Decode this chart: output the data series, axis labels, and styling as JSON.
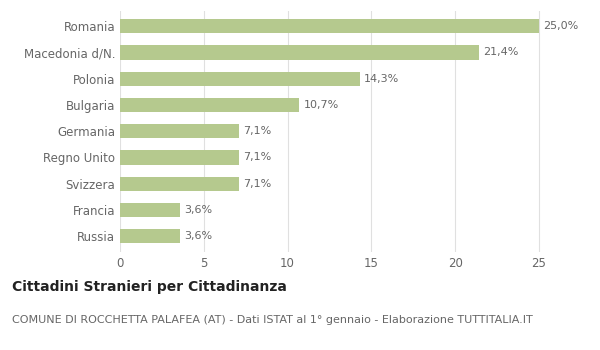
{
  "categories": [
    "Russia",
    "Francia",
    "Svizzera",
    "Regno Unito",
    "Germania",
    "Bulgaria",
    "Polonia",
    "Macedonia d/N.",
    "Romania"
  ],
  "values": [
    3.6,
    3.6,
    7.1,
    7.1,
    7.1,
    10.7,
    14.3,
    21.4,
    25.0
  ],
  "labels": [
    "3,6%",
    "3,6%",
    "7,1%",
    "7,1%",
    "7,1%",
    "10,7%",
    "14,3%",
    "21,4%",
    "25,0%"
  ],
  "bar_color": "#b5c98e",
  "background_color": "#ffffff",
  "xlim": [
    0,
    26.5
  ],
  "xticks": [
    0,
    5,
    10,
    15,
    20,
    25
  ],
  "title_bold": "Cittadini Stranieri per Cittadinanza",
  "subtitle": "COMUNE DI ROCCHETTA PALAFEA (AT) - Dati ISTAT al 1° gennaio - Elaborazione TUTTITALIA.IT",
  "title_fontsize": 10,
  "subtitle_fontsize": 8,
  "label_fontsize": 8,
  "ytick_fontsize": 8.5,
  "xtick_fontsize": 8.5,
  "bar_height": 0.55
}
